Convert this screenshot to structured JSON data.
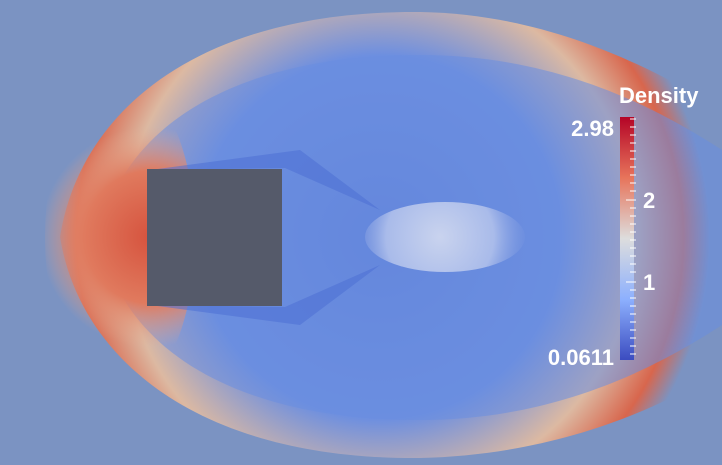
{
  "colorbar": {
    "title": "Density",
    "max_label": "2.98",
    "min_label": "0.0611",
    "tick_labels": [
      "2",
      "1"
    ],
    "colors": {
      "high": "#b40426",
      "mid": "#dddddd",
      "low": "#3b4cc0"
    }
  },
  "scene": {
    "background_color": "#7b93c2",
    "obstacle_color": "#555a6a"
  }
}
